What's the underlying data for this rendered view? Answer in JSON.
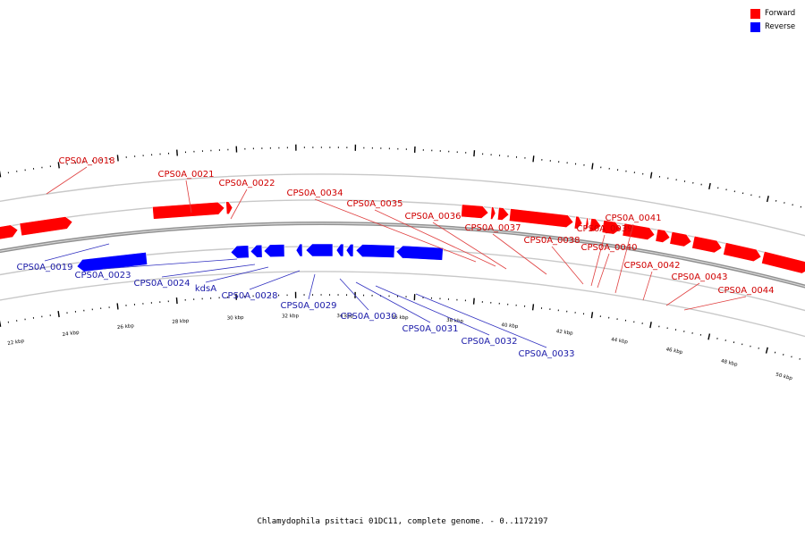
{
  "caption": "Chlamydophila psittaci 01DC11, complete genome. - 0..1172197",
  "legend": [
    {
      "label": "Forward",
      "color": "#ff0000"
    },
    {
      "label": "Reverse",
      "color": "#0000ff"
    }
  ],
  "colors": {
    "forward": "#ff0000",
    "reverse": "#0000ff",
    "forward_label": "#d00000",
    "reverse_label": "#1a1aa8",
    "backbone": "#909090"
  },
  "ticks": [
    "22 kbp",
    "24 kbp",
    "26 kbp",
    "28 kbp",
    "30 kbp",
    "32 kbp",
    "34 kbp",
    "36 kbp",
    "38 kbp",
    "40 kbp",
    "42 kbp",
    "44 kbp",
    "46 kbp",
    "48 kbp",
    "50 kbp"
  ],
  "genes_forward": [
    {
      "label": "CPS0A_0018"
    },
    {
      "label": "CPS0A_0021"
    },
    {
      "label": "CPS0A_0022"
    },
    {
      "label": "CPS0A_0034"
    },
    {
      "label": "CPS0A_0035"
    },
    {
      "label": "CPS0A_0036"
    },
    {
      "label": "CPS0A_0037"
    },
    {
      "label": "CPS0A_0038"
    },
    {
      "label": "CPS0A_0039"
    },
    {
      "label": "CPS0A_0040"
    },
    {
      "label": "CPS0A_0041"
    },
    {
      "label": "CPS0A_0042"
    },
    {
      "label": "CPS0A_0043"
    },
    {
      "label": "CPS0A_0044"
    }
  ],
  "genes_reverse": [
    {
      "label": "CPS0A_0019"
    },
    {
      "label": "CPS0A_0023"
    },
    {
      "label": "CPS0A_0024"
    },
    {
      "label": "kdsA"
    },
    {
      "label": "CPS0A_0028"
    },
    {
      "label": "CPS0A_0029"
    },
    {
      "label": "CPS0A_0030"
    },
    {
      "label": "CPS0A_0031"
    },
    {
      "label": "CPS0A_0032"
    },
    {
      "label": "CPS0A_0033"
    }
  ]
}
